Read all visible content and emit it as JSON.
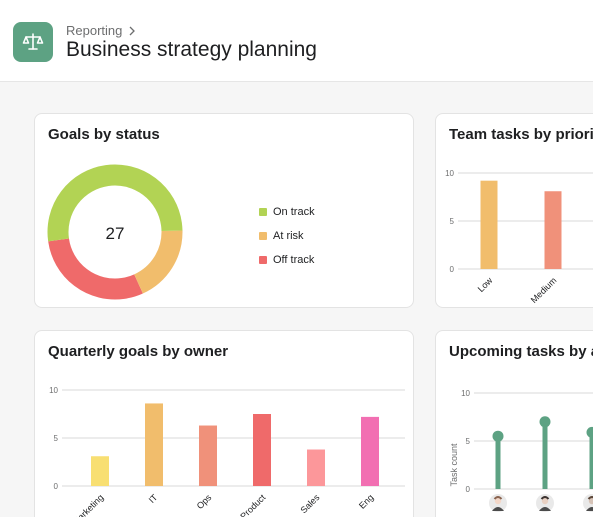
{
  "header": {
    "breadcrumb": "Reporting",
    "title": "Business strategy planning",
    "icon": "scale-icon",
    "icon_color": "#5da283"
  },
  "goals_by_status": {
    "title": "Goals by status",
    "total": "27",
    "legend": [
      {
        "label": "On track",
        "color": "#b2d354"
      },
      {
        "label": "At risk",
        "color": "#f1bd6c"
      },
      {
        "label": "Off track",
        "color": "#ef6a6a"
      }
    ]
  },
  "team_tasks_by_priority": {
    "title": "Team tasks by priority"
  },
  "quarterly_goals_by_owner": {
    "title": "Quarterly goals by owner"
  },
  "upcoming_tasks": {
    "title": "Upcoming tasks by assignee",
    "ylabel": "Task count"
  },
  "chart_data": [
    {
      "type": "pie",
      "title": "Goals by status",
      "categories": [
        "On track",
        "At risk",
        "Off track"
      ],
      "values": [
        14,
        5,
        8
      ],
      "colors": [
        "#b2d354",
        "#f1bd6c",
        "#ef6a6a"
      ]
    },
    {
      "type": "bar",
      "title": "Team tasks by priority",
      "categories": [
        "Low",
        "Medium"
      ],
      "values": [
        9.2,
        8.1
      ],
      "colors": [
        "#f1bd6c",
        "#f0917a"
      ],
      "yticks": [
        "10",
        "5",
        "0"
      ],
      "ylim": [
        0,
        10
      ]
    },
    {
      "type": "bar",
      "title": "Quarterly goals by owner",
      "categories": [
        "Marketing",
        "IT",
        "Ops",
        "Product",
        "Sales",
        "Eng"
      ],
      "values": [
        3.1,
        8.6,
        6.3,
        7.5,
        3.8,
        7.2
      ],
      "colors": [
        "#f8df72",
        "#f1bd6c",
        "#f0917a",
        "#ef6a6a",
        "#fc979a",
        "#f26fb2"
      ],
      "yticks": [
        "10",
        "5",
        "0"
      ],
      "ylim": [
        0,
        10
      ]
    },
    {
      "type": "scatter",
      "title": "Upcoming tasks by assignee",
      "ylabel": "Task count",
      "values": [
        5.5,
        7.0,
        5.9
      ],
      "colors": [
        "#5da283",
        "#5da283",
        "#5da283"
      ],
      "yticks": [
        "10",
        "5",
        "0"
      ],
      "ylim": [
        0,
        10
      ]
    }
  ]
}
